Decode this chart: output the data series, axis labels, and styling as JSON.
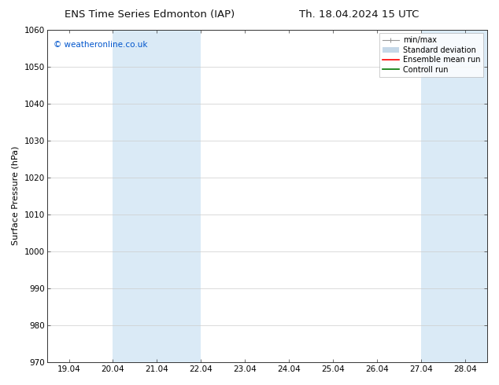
{
  "title_left": "ENS Time Series Edmonton (IAP)",
  "title_right": "Th. 18.04.2024 15 UTC",
  "ylabel": "Surface Pressure (hPa)",
  "ylim": [
    970,
    1060
  ],
  "yticks": [
    970,
    980,
    990,
    1000,
    1010,
    1020,
    1030,
    1040,
    1050,
    1060
  ],
  "xtick_labels": [
    "19.04",
    "20.04",
    "21.04",
    "22.04",
    "23.04",
    "24.04",
    "25.04",
    "26.04",
    "27.04",
    "28.04"
  ],
  "shade_color": "#daeaf6",
  "shade_bands": [
    {
      "xmin": 1.0,
      "xmax": 3.0
    },
    {
      "xmin": 8.0,
      "xmax": 9.5
    }
  ],
  "watermark": "© weatheronline.co.uk",
  "watermark_color": "#0055cc",
  "background_color": "#ffffff",
  "title_fontsize": 9.5,
  "axis_label_fontsize": 8,
  "tick_fontsize": 7.5,
  "legend_fontsize": 7,
  "legend_labels": [
    "min/max",
    "Standard deviation",
    "Ensemble mean run",
    "Controll run"
  ],
  "legend_colors": [
    "#999999",
    "#bbccdd",
    "#ff0000",
    "#007700"
  ],
  "minmax_color": "#999999",
  "std_color": "#c5d8e8",
  "ens_color": "#ff0000",
  "ctrl_color": "#007700"
}
